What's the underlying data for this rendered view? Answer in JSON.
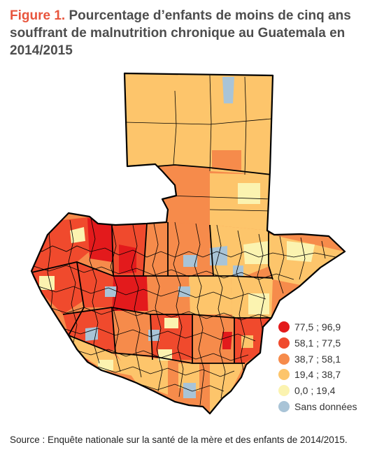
{
  "figure": {
    "label": "Figure 1.",
    "title": "Pourcentage d’enfants de moins de cinq ans souffrant de malnutrition chronique au Guatemala en 2014/2015"
  },
  "legend": {
    "items": [
      {
        "label": "77,5 ; 96,9",
        "color": "#e31a1c"
      },
      {
        "label": "58,1 ; 77,5",
        "color": "#f04a2d"
      },
      {
        "label": "38,7 ; 58,1",
        "color": "#f68b4b"
      },
      {
        "label": "19,4 ; 38,7",
        "color": "#fdc56b"
      },
      {
        "label": "0,0 ; 19,4",
        "color": "#fbf3b0"
      },
      {
        "label": "Sans données",
        "color": "#a9c4d7"
      }
    ]
  },
  "map": {
    "region": "Guatemala",
    "border_color": "#000000"
  },
  "source": "Source : Enquête nationale sur la santé de la mère et des enfants de 2014/2015."
}
